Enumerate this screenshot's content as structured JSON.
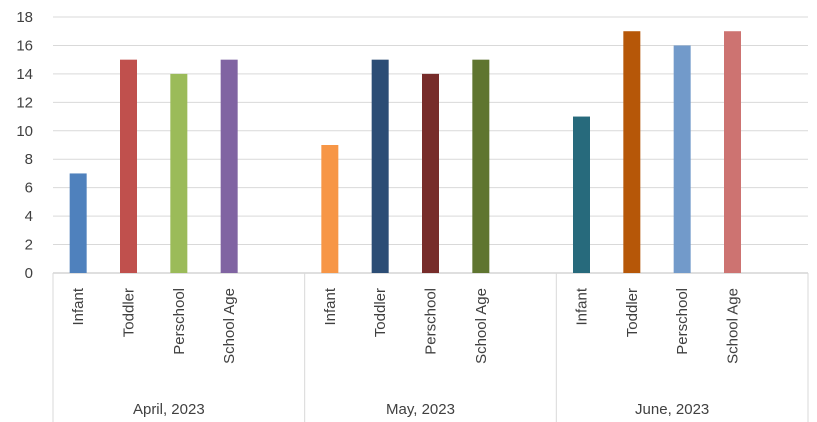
{
  "chart_data": {
    "type": "bar",
    "title": "",
    "xlabel": "",
    "ylabel": "",
    "ylim": [
      0,
      18
    ],
    "yticks": [
      0,
      2,
      4,
      6,
      8,
      10,
      12,
      14,
      16,
      18
    ],
    "grid": true,
    "legend": "none",
    "groups": [
      {
        "label": "April, 2023",
        "categories": [
          "Infant",
          "Toddler",
          "Perschool",
          "School Age"
        ],
        "values": [
          7,
          15,
          14,
          15
        ],
        "colors": [
          "#4f81bd",
          "#c0504d",
          "#9bbb59",
          "#8064a2"
        ]
      },
      {
        "label": "May, 2023",
        "categories": [
          "Infant",
          "Toddler",
          "Perschool",
          "School Age"
        ],
        "values": [
          9,
          15,
          14,
          15
        ],
        "colors": [
          "#f79646",
          "#2c4d75",
          "#772c2a",
          "#5f7530"
        ]
      },
      {
        "label": "June, 2023",
        "categories": [
          "Infant",
          "Toddler",
          "Perschool",
          "School Age"
        ],
        "values": [
          11,
          17,
          16,
          17
        ],
        "colors": [
          "#276a7c",
          "#b65708",
          "#729aca",
          "#cd7371"
        ]
      }
    ]
  }
}
